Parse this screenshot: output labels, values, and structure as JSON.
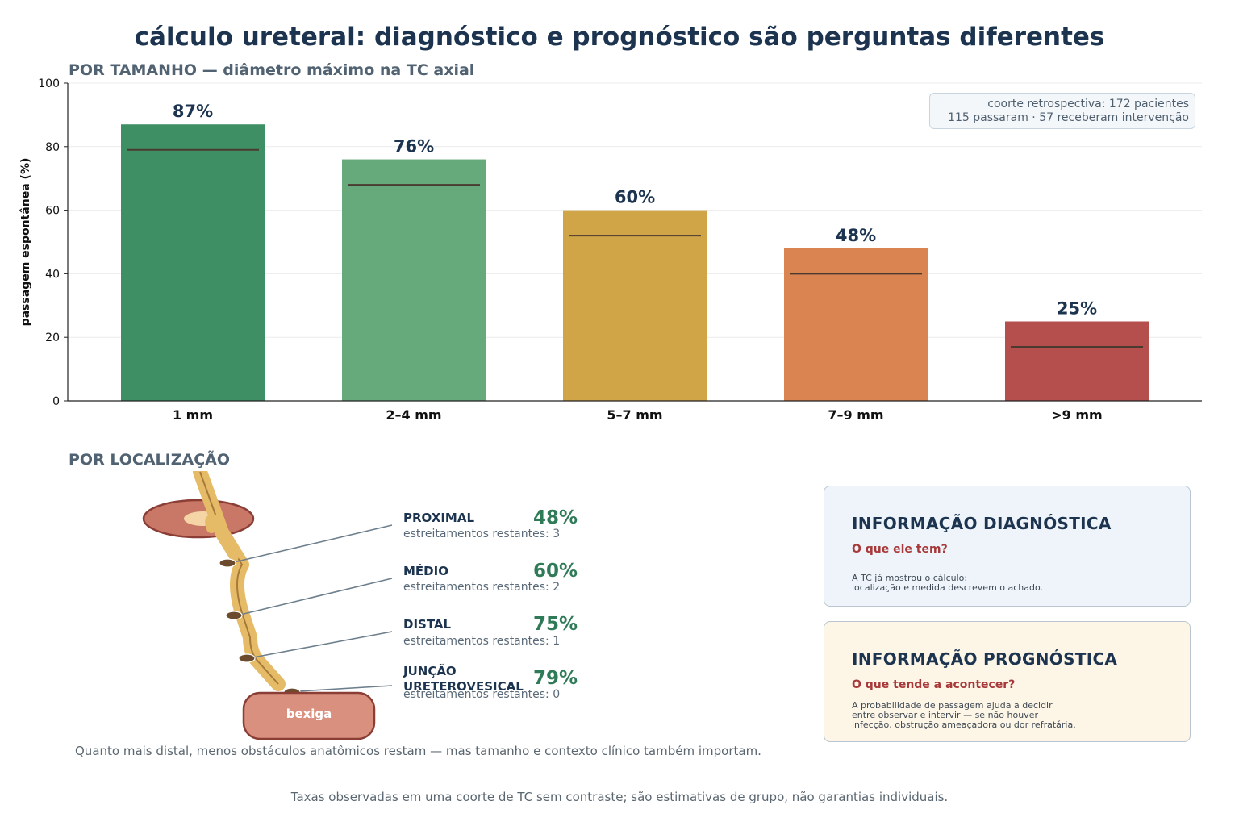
{
  "title": "cálculo ureteral: diagnóstico e prognóstico são perguntas diferentes",
  "size_section": "POR TAMANHO — diâmetro máximo na TC axial",
  "location_section": "POR LOCALIZAÇÃO",
  "cohort": {
    "line1": "coorte retrospectiva: 172 pacientes",
    "line2": "115 passaram · 57 receberam intervenção"
  },
  "chart_data": {
    "type": "bar",
    "ylabel": "passagem espontânea (%)",
    "xlabel": "",
    "ylim": [
      0,
      100
    ],
    "yticks": [
      0,
      20,
      40,
      60,
      80,
      100
    ],
    "grid": true,
    "categories": [
      "1 mm",
      "2–4 mm",
      "5–7 mm",
      "7–9 mm",
      ">9 mm"
    ],
    "values": [
      87,
      76,
      60,
      48,
      25
    ],
    "labels": [
      "87%",
      "76%",
      "60%",
      "48%",
      "25%"
    ],
    "reference_values": [
      79,
      68,
      52,
      40,
      17
    ],
    "colors": [
      "#3f8f65",
      "#66a97b",
      "#d0a548",
      "#da8451",
      "#b44f4e"
    ]
  },
  "locations": [
    {
      "name": "PROXIMAL",
      "pct": "48%",
      "sub": "estreitamentos restantes: 3"
    },
    {
      "name": "MÉDIO",
      "pct": "60%",
      "sub": "estreitamentos restantes: 2"
    },
    {
      "name": "DISTAL",
      "pct": "75%",
      "sub": "estreitamentos restantes: 1"
    },
    {
      "name": "JUNÇÃO URETEROVESICAL",
      "pct": "79%",
      "sub": "estreitamentos restantes: 0"
    }
  ],
  "bladder": "bexiga",
  "diagnostic": {
    "title": "INFORMAÇÃO DIAGNÓSTICA",
    "question": "O que ele tem?",
    "body": "A TC já mostrou o cálculo:\nlocalização e medida descrevem o achado."
  },
  "prognostic": {
    "title": "INFORMAÇÃO PROGNÓSTICA",
    "question": "O que tende a acontecer?",
    "body": "A probabilidade de passagem ajuda a decidir\nentre observar e intervir — se não houver\ninfecção, obstrução ameaçadora ou dor refratária."
  },
  "note": "Quanto mais distal, menos obstáculos anatômicos restam — mas tamanho e contexto clínico também importam.",
  "footer": "Taxas observadas em uma coorte de TC sem contraste; são estimativas de grupo, não garantias individuais."
}
